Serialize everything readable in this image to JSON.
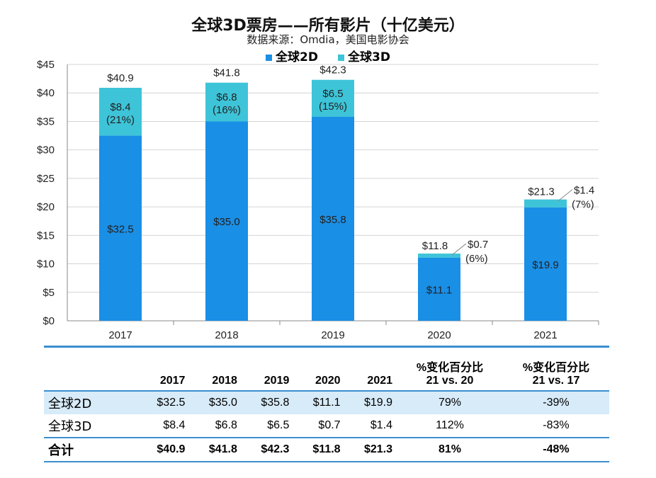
{
  "chart_data": {
    "type": "bar",
    "stacked": true,
    "title": "全球3D票房——所有影片（十亿美元）",
    "subtitle": "数据来源：Omdia，美国电影协会",
    "categories": [
      "2017",
      "2018",
      "2019",
      "2020",
      "2021"
    ],
    "series": [
      {
        "name": "全球2D",
        "color": "#1a8fe6",
        "values": [
          32.5,
          35.0,
          35.8,
          11.1,
          19.9
        ],
        "labels": [
          "$32.5",
          "$35.0",
          "$35.8",
          "$11.1",
          "$19.9"
        ]
      },
      {
        "name": "全球3D",
        "color": "#3ec4d8",
        "values": [
          8.4,
          6.8,
          6.5,
          0.7,
          1.4
        ],
        "labels": [
          "$8.4",
          "$6.8",
          "$6.5",
          "$0.7",
          "$1.4"
        ],
        "share_labels": [
          "(21%)",
          "(16%)",
          "(15%)",
          "(6%)",
          "(7%)"
        ]
      }
    ],
    "totals": [
      "$40.9",
      "$41.8",
      "$42.3",
      "$11.8",
      "$21.3"
    ],
    "ylim": [
      0,
      45
    ],
    "yticks": [
      "$0",
      "$5",
      "$10",
      "$15",
      "$20",
      "$25",
      "$30",
      "$35",
      "$40",
      "$45"
    ],
    "grid": true,
    "legend": "top"
  },
  "table": {
    "headers": [
      "",
      "2017",
      "2018",
      "2019",
      "2020",
      "2021",
      "%变化百分比 21 vs. 20",
      "%变化百分比 21 vs. 17"
    ],
    "header_pc": [
      [
        "%变化百分比",
        "21 vs. 20"
      ],
      [
        "%变化百分比",
        "21 vs. 17"
      ]
    ],
    "rows": [
      [
        "全球2D",
        "$32.5",
        "$35.0",
        "$35.8",
        "$11.1",
        "$19.9",
        "79%",
        "-39%"
      ],
      [
        "全球3D",
        "$8.4",
        "$6.8",
        "$6.5",
        "$0.7",
        "$1.4",
        "112%",
        "-83%"
      ],
      [
        "合计",
        "$40.9",
        "$41.8",
        "$42.3",
        "$11.8",
        "$21.3",
        "81%",
        "-48%"
      ]
    ]
  }
}
